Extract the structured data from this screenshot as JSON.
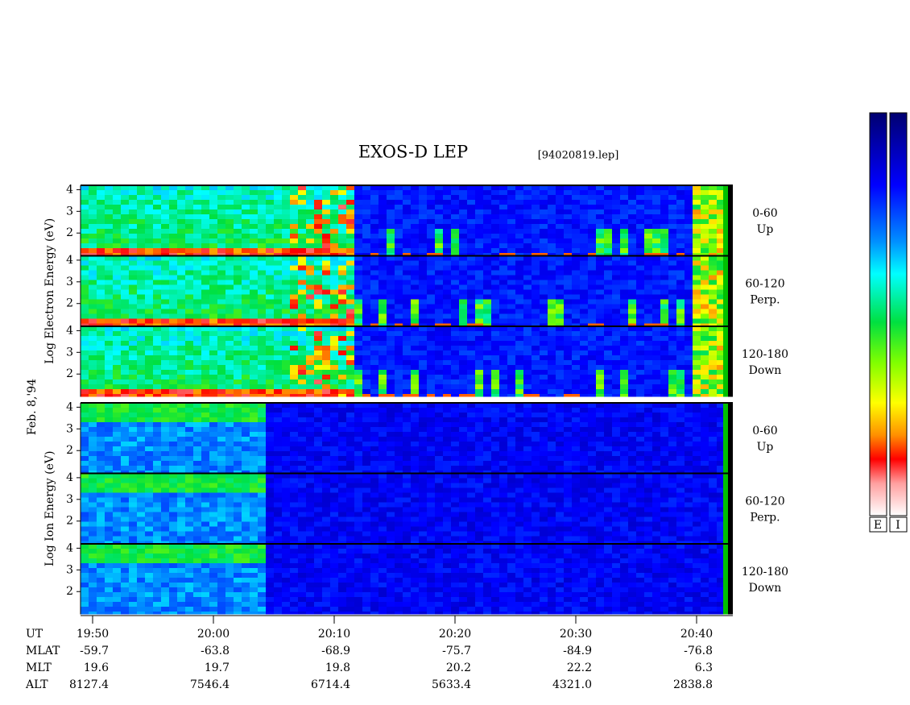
{
  "chart_data": {
    "type": "spectrogram",
    "title": "EXOS-D LEP",
    "subtitle": "[94020819.lep]",
    "date_label": "Feb. 8,'94",
    "groups": [
      {
        "ylabel": "Log Electron Energy (eV)",
        "kind": "electron",
        "panels": [
          {
            "label": [
              "0-60",
              "Up"
            ]
          },
          {
            "label": [
              "60-120",
              "Perp."
            ]
          },
          {
            "label": [
              "120-180",
              "Down"
            ]
          }
        ]
      },
      {
        "ylabel": "Log Ion Energy (eV)",
        "kind": "ion",
        "panels": [
          {
            "label": [
              "0-60",
              "Up"
            ]
          },
          {
            "label": [
              "60-120",
              "Perp."
            ]
          },
          {
            "label": [
              "120-180",
              "Down"
            ]
          }
        ]
      }
    ],
    "ylim": [
      0.95,
      4.2
    ],
    "yticks": [
      2,
      3,
      4
    ],
    "xlim": [
      "19:49",
      "20:43"
    ],
    "xticks": [
      "19:50",
      "20:00",
      "20:10",
      "20:20",
      "20:30",
      "20:40"
    ],
    "x_label": "UT",
    "rows": [
      {
        "name": "MLAT",
        "labels": [
          "-59.7",
          "-63.8",
          "-68.9",
          "-75.7",
          "-84.9",
          "-76.8"
        ]
      },
      {
        "name": "MLT",
        "labels": [
          "19.6",
          "19.7",
          "19.8",
          "20.2",
          "22.2",
          "6.3"
        ]
      },
      {
        "name": "ALT",
        "labels": [
          "8127.4",
          "7546.4",
          "6714.4",
          "5633.4",
          "4321.0",
          "2838.8"
        ]
      }
    ],
    "colorbar_labels": [
      "E",
      "I"
    ]
  }
}
